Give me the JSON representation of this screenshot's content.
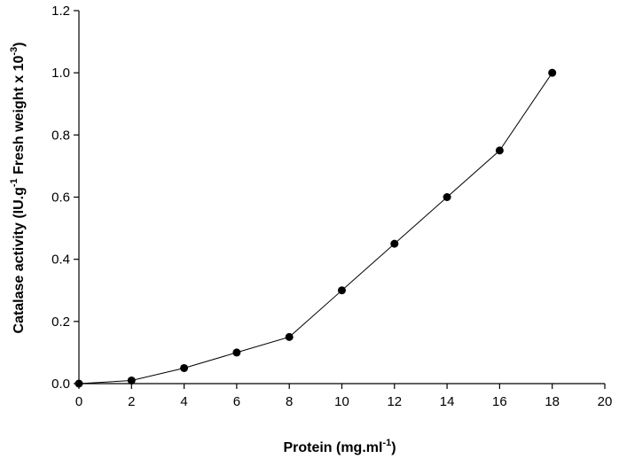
{
  "chart_data": {
    "type": "line",
    "title": "",
    "xlabel": {
      "main": "Protein (mg.ml",
      "sup": "-1",
      "close": ")"
    },
    "ylabel": {
      "part1": "Catalase activity (IU.g",
      "sup1": "-1",
      "part2": " Fresh weight x 10",
      "sup2": "-3",
      "close": ")"
    },
    "xlim": [
      0,
      20
    ],
    "ylim": [
      0,
      1.2
    ],
    "xticks": [
      0,
      2,
      4,
      6,
      8,
      10,
      12,
      14,
      16,
      18,
      20
    ],
    "xtick_labels": [
      "0",
      "2",
      "4",
      "6",
      "8",
      "10",
      "12",
      "14",
      "16",
      "18",
      "20"
    ],
    "yticks": [
      0,
      0.2,
      0.4,
      0.6,
      0.8,
      1.0,
      1.2
    ],
    "ytick_labels": [
      "0.0",
      "0.2",
      "0.4",
      "0.6",
      "0.8",
      "1.0",
      "1.2"
    ],
    "grid": false,
    "legend": "none",
    "series": [
      {
        "x": [
          0,
          2,
          4,
          6,
          8,
          10,
          12,
          14,
          16,
          18
        ],
        "y": [
          0.0,
          0.01,
          0.05,
          0.1,
          0.15,
          0.3,
          0.45,
          0.6,
          0.75,
          1.0
        ],
        "color": "#000000",
        "marker": "circle"
      }
    ]
  }
}
